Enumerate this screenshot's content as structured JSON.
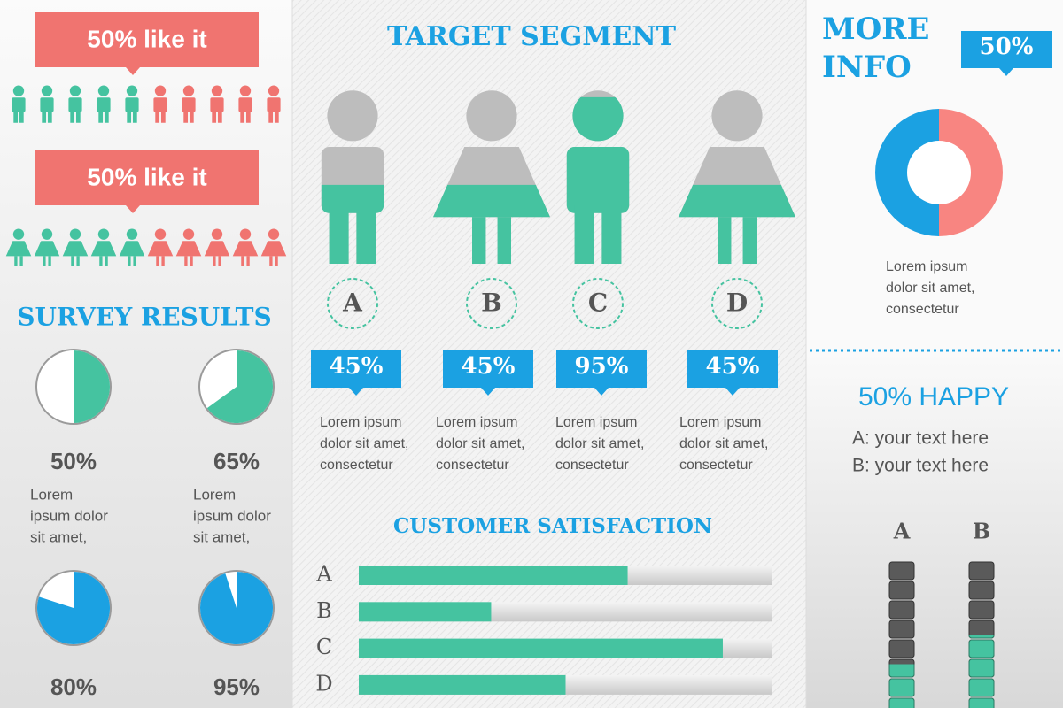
{
  "likes": [
    {
      "text": "50% like it",
      "share": 50
    },
    {
      "text": "50% like it",
      "share": 50
    }
  ],
  "survey": {
    "title": "SURVEY RESULTS",
    "items": [
      {
        "value": 50,
        "label": "50%",
        "color": "#45c3a0",
        "lines": [
          "Lorem",
          "ipsum dolor",
          "sit amet,"
        ]
      },
      {
        "value": 65,
        "label": "65%",
        "color": "#45c3a0",
        "lines": [
          "Lorem",
          "ipsum dolor",
          "sit amet,"
        ]
      },
      {
        "value": 80,
        "label": "80%",
        "color": "#1ba1e2"
      },
      {
        "value": 95,
        "label": "95%",
        "color": "#1ba1e2"
      }
    ]
  },
  "target": {
    "title": "TARGET SEGMENT",
    "segments": [
      {
        "letter": "A",
        "value": 45,
        "label": "45%",
        "lines": [
          "Lorem ipsum",
          "dolor sit amet,",
          "consectetur"
        ]
      },
      {
        "letter": "B",
        "value": 45,
        "label": "45%",
        "lines": [
          "Lorem ipsum",
          "dolor sit amet,",
          "consectetur"
        ]
      },
      {
        "letter": "C",
        "value": 95,
        "label": "95%",
        "lines": [
          "Lorem ipsum",
          "dolor sit amet,",
          "consectetur"
        ]
      },
      {
        "letter": "D",
        "value": 45,
        "label": "45%",
        "lines": [
          "Lorem ipsum",
          "dolor sit amet,",
          "consectetur"
        ]
      }
    ]
  },
  "satisfaction": {
    "title": "CUSTOMER SATISFACTION",
    "categories": [
      "A",
      "B",
      "C",
      "D"
    ],
    "values": [
      65,
      32,
      88,
      50
    ],
    "xlim": [
      0,
      100
    ],
    "color": "#45c3a0"
  },
  "more_info": {
    "title_lines": [
      "MORE",
      "INFO"
    ],
    "value": 50,
    "label": "50%",
    "lines": [
      "Lorem ipsum",
      "dolor sit amet,",
      "consectetur"
    ]
  },
  "happy": {
    "title": "50% HAPPY",
    "lines": [
      "A: your text here",
      "B: your text here"
    ],
    "columns": [
      {
        "letter": "A",
        "value": 30
      },
      {
        "letter": "B",
        "value": 50
      }
    ],
    "ylim": [
      0,
      100
    ]
  }
}
